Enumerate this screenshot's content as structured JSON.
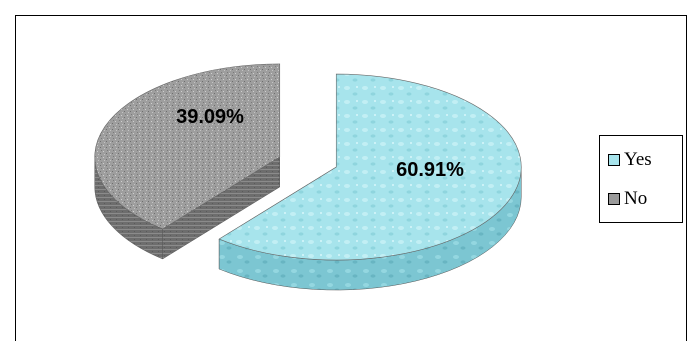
{
  "chart_data": {
    "type": "pie",
    "title": "",
    "categories": [
      "Yes",
      "No"
    ],
    "values": [
      60.91,
      39.09
    ],
    "labels": [
      "60.91%",
      "39.09%"
    ],
    "colors": [
      "#a7e4ec",
      "#9a9a9a"
    ],
    "exploded": true,
    "style": "3d",
    "legend_position": "right"
  },
  "legend": {
    "items": [
      {
        "label": "Yes",
        "color": "#a7e4ec"
      },
      {
        "label": "No",
        "color": "#9a9a9a"
      }
    ]
  }
}
